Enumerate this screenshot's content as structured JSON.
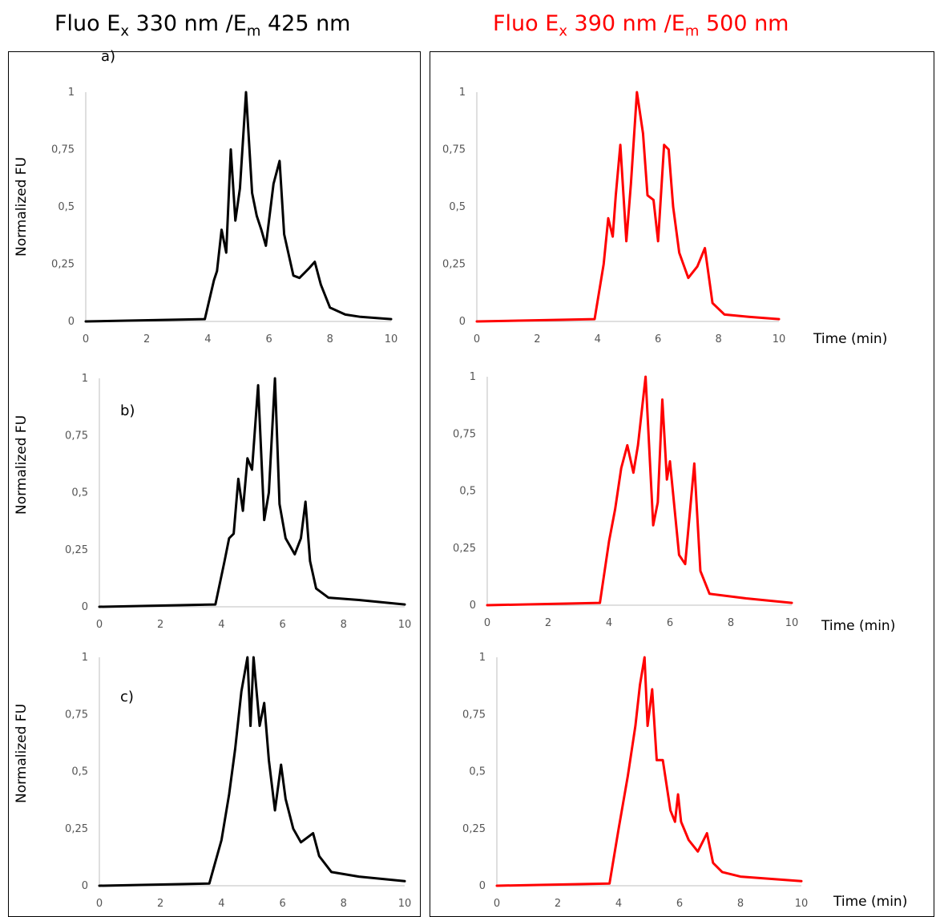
{
  "titles": {
    "left": {
      "pre": "Fluo E",
      "sub1": "x",
      "mid": " 330 nm /E",
      "sub2": "m",
      "post": " 425 nm"
    },
    "right": {
      "pre": "Fluo E",
      "sub1": "x",
      "mid": " 390 nm /E",
      "sub2": "m",
      "post": " 500 nm",
      "color": "#ff0000"
    }
  },
  "chart_data": [
    {
      "type": "line",
      "panel": "a)",
      "ylabel": "Normalized FU",
      "xlabel": "",
      "xlim": [
        0,
        10
      ],
      "ylim": [
        0,
        1
      ],
      "xticks": [
        "0",
        "2",
        "4",
        "6",
        "8",
        "10"
      ],
      "yticks": [
        "0",
        "0,25",
        "0,5",
        "0,75",
        "1"
      ],
      "color": "#000000",
      "series": [
        {
          "x": [
            0,
            3.9,
            4.2,
            4.3,
            4.45,
            4.6,
            4.75,
            4.9,
            5.05,
            5.25,
            5.45,
            5.6,
            5.75,
            5.9,
            6.15,
            6.35,
            6.5,
            6.8,
            7.0,
            7.3,
            7.5,
            7.7,
            8.0,
            8.5,
            9.0,
            10
          ],
          "y": [
            0,
            0.01,
            0.18,
            0.22,
            0.4,
            0.3,
            0.75,
            0.44,
            0.58,
            1.0,
            0.56,
            0.46,
            0.4,
            0.33,
            0.6,
            0.7,
            0.38,
            0.2,
            0.19,
            0.23,
            0.26,
            0.16,
            0.06,
            0.03,
            0.02,
            0.01
          ]
        }
      ]
    },
    {
      "type": "line",
      "panel": "",
      "ylabel": "",
      "xlabel": "Time (min)",
      "xlim": [
        0,
        10
      ],
      "ylim": [
        0,
        1
      ],
      "xticks": [
        "0",
        "2",
        "4",
        "6",
        "8",
        "10"
      ],
      "yticks": [
        "0",
        "0,25",
        "0,5",
        "0,75",
        "1"
      ],
      "color": "#ff0000",
      "series": [
        {
          "x": [
            0,
            3.9,
            4.2,
            4.35,
            4.5,
            4.6,
            4.75,
            4.95,
            5.1,
            5.3,
            5.5,
            5.65,
            5.85,
            6.0,
            6.2,
            6.35,
            6.5,
            6.7,
            7.0,
            7.3,
            7.55,
            7.8,
            8.2,
            9.0,
            10
          ],
          "y": [
            0,
            0.01,
            0.25,
            0.45,
            0.37,
            0.55,
            0.77,
            0.35,
            0.6,
            1.0,
            0.82,
            0.55,
            0.53,
            0.35,
            0.77,
            0.75,
            0.5,
            0.3,
            0.19,
            0.24,
            0.32,
            0.08,
            0.03,
            0.02,
            0.01
          ]
        }
      ]
    },
    {
      "type": "line",
      "panel": "b)",
      "ylabel": "Normalized FU",
      "xlabel": "",
      "xlim": [
        0,
        10
      ],
      "ylim": [
        0,
        1
      ],
      "xticks": [
        "0",
        "2",
        "4",
        "6",
        "8",
        "10"
      ],
      "yticks": [
        "0",
        "0,25",
        "0,5",
        "0,75",
        "1"
      ],
      "color": "#000000",
      "series": [
        {
          "x": [
            0,
            3.8,
            4.1,
            4.25,
            4.4,
            4.55,
            4.7,
            4.85,
            5.0,
            5.2,
            5.4,
            5.55,
            5.75,
            5.9,
            6.1,
            6.4,
            6.6,
            6.75,
            6.9,
            7.1,
            7.5,
            8.5,
            10
          ],
          "y": [
            0,
            0.01,
            0.2,
            0.3,
            0.32,
            0.56,
            0.42,
            0.65,
            0.6,
            0.97,
            0.38,
            0.5,
            1.0,
            0.45,
            0.3,
            0.23,
            0.3,
            0.46,
            0.2,
            0.08,
            0.04,
            0.03,
            0.01
          ]
        }
      ]
    },
    {
      "type": "line",
      "panel": "",
      "ylabel": "",
      "xlabel": "Time (min)",
      "xlim": [
        0,
        10
      ],
      "ylim": [
        0,
        1
      ],
      "xticks": [
        "0",
        "2",
        "4",
        "6",
        "8",
        "10"
      ],
      "yticks": [
        "0",
        "0,25",
        "0,5",
        "0,75",
        "1"
      ],
      "color": "#ff0000",
      "series": [
        {
          "x": [
            0,
            3.7,
            4.0,
            4.2,
            4.4,
            4.6,
            4.8,
            4.95,
            5.2,
            5.45,
            5.6,
            5.75,
            5.9,
            6.0,
            6.3,
            6.5,
            6.8,
            7.0,
            7.3,
            8.5,
            10
          ],
          "y": [
            0,
            0.01,
            0.28,
            0.42,
            0.6,
            0.7,
            0.58,
            0.7,
            1.0,
            0.35,
            0.45,
            0.9,
            0.55,
            0.63,
            0.22,
            0.18,
            0.62,
            0.15,
            0.05,
            0.03,
            0.01
          ]
        }
      ]
    },
    {
      "type": "line",
      "panel": "c)",
      "ylabel": "Normalized FU",
      "xlabel": "",
      "xlim": [
        0,
        10
      ],
      "ylim": [
        0,
        1
      ],
      "xticks": [
        "0",
        "2",
        "4",
        "6",
        "8",
        "10"
      ],
      "yticks": [
        "0",
        "0,25",
        "0,5",
        "0,75",
        "1"
      ],
      "color": "#000000",
      "series": [
        {
          "x": [
            0,
            3.6,
            4.0,
            4.25,
            4.45,
            4.65,
            4.85,
            4.95,
            5.05,
            5.25,
            5.4,
            5.55,
            5.75,
            5.95,
            6.1,
            6.35,
            6.6,
            6.9,
            7.0,
            7.2,
            7.6,
            8.5,
            10
          ],
          "y": [
            0,
            0.01,
            0.2,
            0.4,
            0.6,
            0.85,
            1.0,
            0.7,
            1.0,
            0.7,
            0.8,
            0.55,
            0.33,
            0.53,
            0.38,
            0.25,
            0.19,
            0.22,
            0.23,
            0.13,
            0.06,
            0.04,
            0.02
          ]
        }
      ]
    },
    {
      "type": "line",
      "panel": "",
      "ylabel": "",
      "xlabel": "Time (min)",
      "xlim": [
        0,
        10
      ],
      "ylim": [
        0,
        1
      ],
      "xticks": [
        "0",
        "2",
        "4",
        "6",
        "8",
        "10"
      ],
      "yticks": [
        "0",
        "0,25",
        "0,5",
        "0,75",
        "1"
      ],
      "color": "#ff0000",
      "series": [
        {
          "x": [
            0,
            3.7,
            4.0,
            4.3,
            4.55,
            4.7,
            4.85,
            4.95,
            5.1,
            5.25,
            5.45,
            5.7,
            5.85,
            5.95,
            6.05,
            6.3,
            6.6,
            6.9,
            7.1,
            7.4,
            8.0,
            10
          ],
          "y": [
            0,
            0.01,
            0.25,
            0.48,
            0.7,
            0.88,
            1.0,
            0.7,
            0.86,
            0.55,
            0.55,
            0.33,
            0.28,
            0.4,
            0.28,
            0.2,
            0.15,
            0.23,
            0.1,
            0.06,
            0.04,
            0.02
          ]
        }
      ]
    }
  ]
}
